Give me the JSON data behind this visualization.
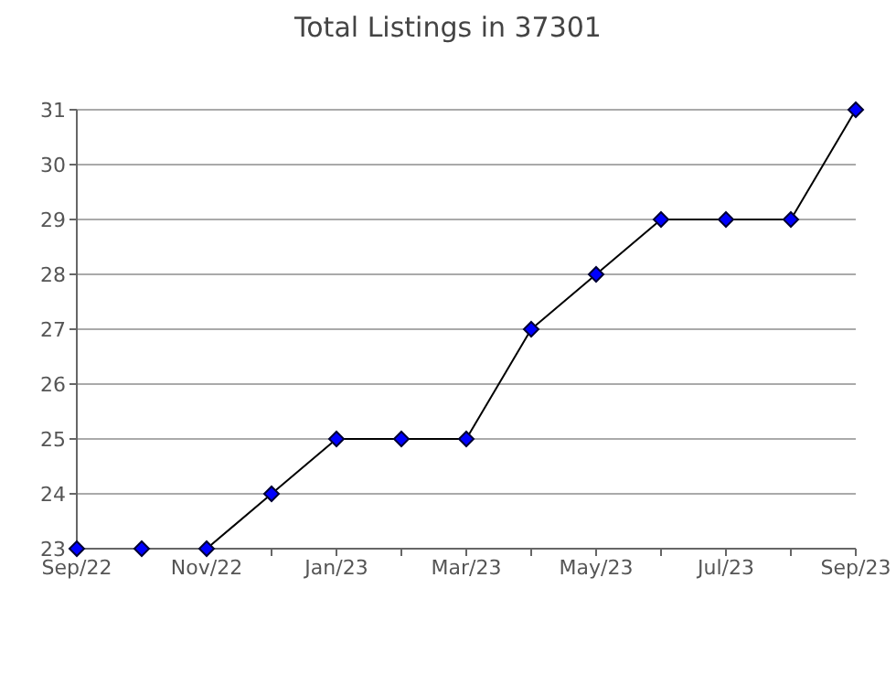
{
  "chart_data": {
    "type": "line",
    "title": "Total Listings in 37301",
    "x": [
      "2022-09",
      "2022-10",
      "2022-11",
      "2022-12",
      "2023-01",
      "2023-02",
      "2023-03",
      "2023-04",
      "2023-05",
      "2023-06",
      "2023-07",
      "2023-08",
      "2023-09"
    ],
    "series": [
      {
        "color": "#0000ff",
        "values": [
          23,
          23,
          23,
          24,
          25,
          25,
          25,
          27,
          28,
          29,
          29,
          29,
          31
        ]
      }
    ],
    "xlim": [
      "2022-09",
      "2023-09"
    ],
    "xticks": [
      {
        "value": "2022-09",
        "label": "Sep/22"
      },
      {
        "value": "2022-10",
        "label": null
      },
      {
        "value": "2022-11",
        "label": "Nov/22"
      },
      {
        "value": "2022-12",
        "label": null
      },
      {
        "value": "2023-01",
        "label": "Jan/23"
      },
      {
        "value": "2023-02",
        "label": null
      },
      {
        "value": "2023-03",
        "label": "Mar/23"
      },
      {
        "value": "2023-04",
        "label": null
      },
      {
        "value": "2023-05",
        "label": "May/23"
      },
      {
        "value": "2023-06",
        "label": null
      },
      {
        "value": "2023-07",
        "label": "Jul/23"
      },
      {
        "value": "2023-08",
        "label": null
      },
      {
        "value": "2023-09",
        "label": "Sep/23"
      }
    ],
    "ylim": [
      23,
      31
    ],
    "yticks": [
      23,
      24,
      25,
      26,
      27,
      28,
      29,
      30,
      31
    ],
    "grid": "y",
    "marker": "diamond",
    "line_style": "solid"
  }
}
